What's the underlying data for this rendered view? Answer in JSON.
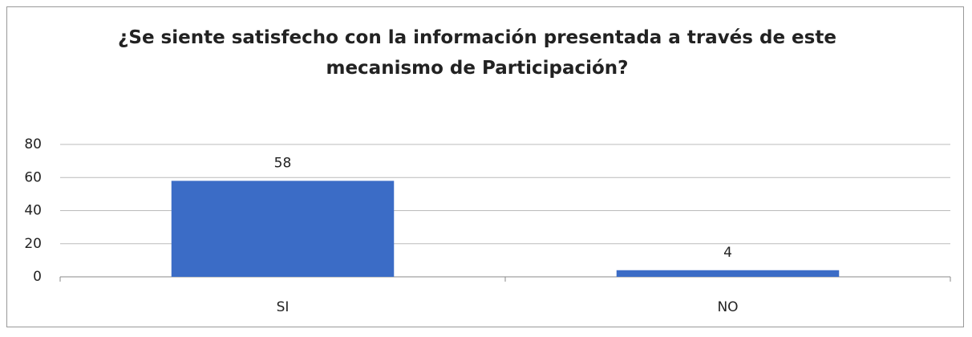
{
  "chart_data": {
    "type": "bar",
    "title": "¿Se siente satisfecho con la información presentada a través de este mecanismo de Participación?",
    "categories": [
      "SI",
      "NO"
    ],
    "values": [
      58,
      4
    ],
    "color": "#3b6cc6",
    "ylim": [
      0,
      80
    ],
    "yticks": [
      0,
      20,
      40,
      60,
      80
    ],
    "grid": true
  }
}
